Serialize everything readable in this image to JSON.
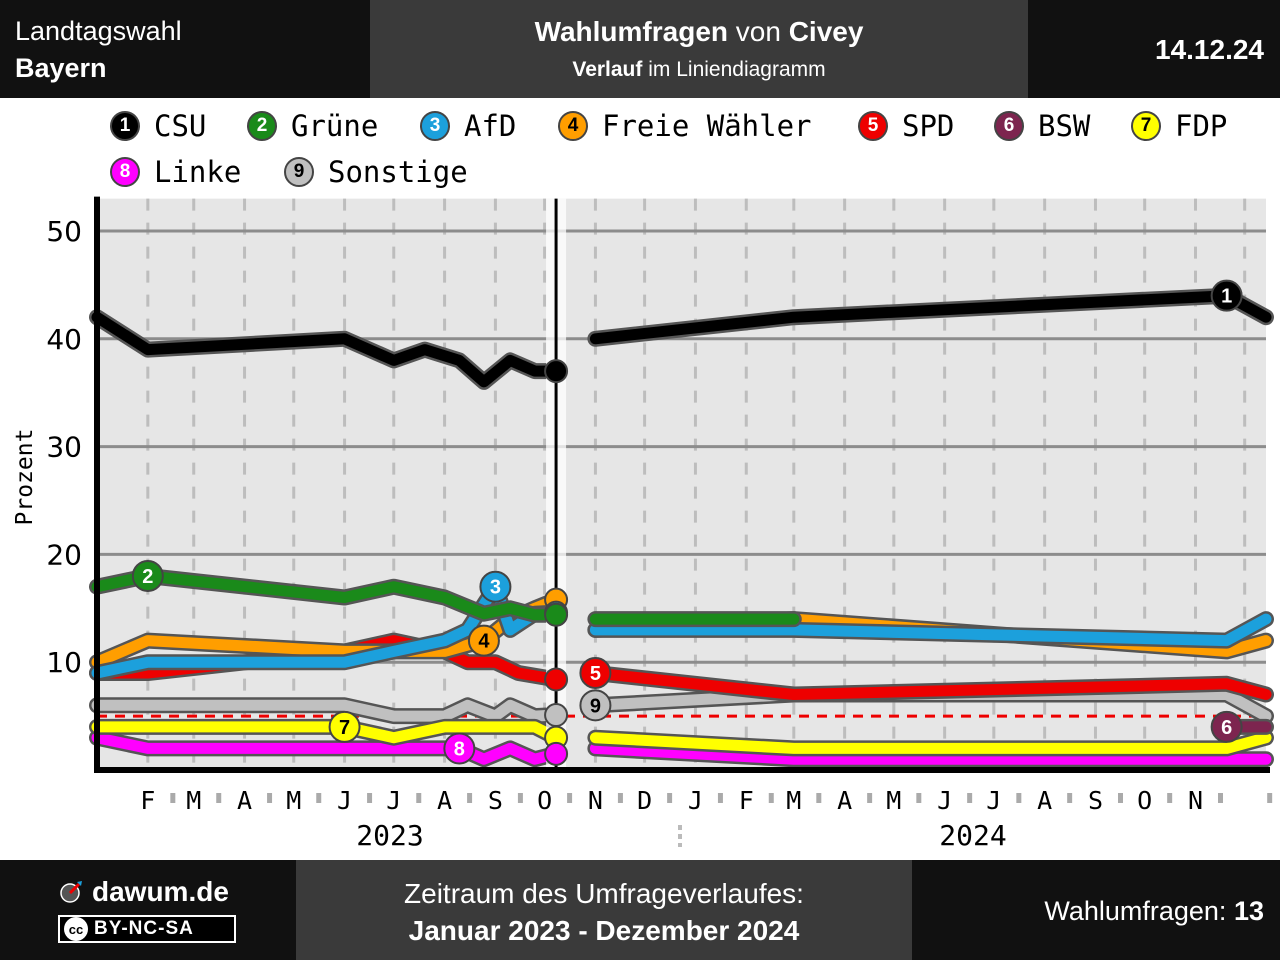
{
  "header": {
    "election_type": "Landtagswahl",
    "region": "Bayern",
    "title_bold1": "Wahlumfragen",
    "title_mid": " von ",
    "title_bold2": "Civey",
    "subtitle_bold": "Verlauf",
    "subtitle_rest": " im Liniendiagramm",
    "date": "14.12.24"
  },
  "legend": [
    {
      "num": "1",
      "label": "CSU",
      "color": "#000000",
      "text_color": "#ffffff"
    },
    {
      "num": "2",
      "label": "Grüne",
      "color": "#1a8a1a",
      "text_color": "#ffffff"
    },
    {
      "num": "3",
      "label": "AfD",
      "color": "#1ca0dc",
      "text_color": "#ffffff"
    },
    {
      "num": "4",
      "label": "Freie Wähler",
      "color": "#ff9e00",
      "text_color": "#000000"
    },
    {
      "num": "5",
      "label": "SPD",
      "color": "#ee0000",
      "text_color": "#ffffff"
    },
    {
      "num": "6",
      "label": "BSW",
      "color": "#7d254f",
      "text_color": "#ffffff"
    },
    {
      "num": "7",
      "label": "FDP",
      "color": "#ffff00",
      "text_color": "#000000"
    },
    {
      "num": "8",
      "label": "Linke",
      "color": "#ff00ff",
      "text_color": "#ffffff"
    },
    {
      "num": "9",
      "label": "Sonstige",
      "color": "#c0c0c0",
      "text_color": "#000000"
    }
  ],
  "chart_data": {
    "type": "line",
    "ylabel": "Prozent",
    "ylim": [
      0,
      53
    ],
    "yticks": [
      10,
      20,
      30,
      40,
      50
    ],
    "threshold": 5,
    "election_marker": "2023-10-08",
    "month_labels": [
      "F",
      "M",
      "A",
      "M",
      "J",
      "J",
      "A",
      "S",
      "O",
      "N",
      "D",
      "J",
      "F",
      "M",
      "A",
      "M",
      "J",
      "J",
      "A",
      "S",
      "O",
      "N"
    ],
    "years": [
      "2023",
      "2024"
    ],
    "election_results": [
      {
        "party": "CSU",
        "value": 37.0
      },
      {
        "party": "Freie Wähler",
        "value": 15.8
      },
      {
        "party": "AfD",
        "value": 14.6
      },
      {
        "party": "Grüne",
        "value": 14.4
      },
      {
        "party": "SPD",
        "value": 8.4
      },
      {
        "party": "Sonstige",
        "value": 5.1
      },
      {
        "party": "FDP",
        "value": 3.0
      },
      {
        "party": "Linke",
        "value": 1.5
      }
    ],
    "series": [
      {
        "name": "CSU",
        "color": "#000000",
        "label_num": "1",
        "label_at": "2024-11-20",
        "points": [
          [
            "2023-01-01",
            42
          ],
          [
            "2023-02-01",
            39
          ],
          [
            "2023-06-01",
            40
          ],
          [
            "2023-07-01",
            38
          ],
          [
            "2023-07-20",
            39
          ],
          [
            "2023-08-10",
            38
          ],
          [
            "2023-08-25",
            36
          ],
          [
            "2023-09-10",
            38
          ],
          [
            "2023-09-25",
            37
          ],
          [
            "2023-10-08",
            37
          ]
        ],
        "points2": [
          [
            "2023-11-01",
            40
          ],
          [
            "2024-03-01",
            42
          ],
          [
            "2024-11-20",
            44
          ],
          [
            "2024-12-14",
            42
          ]
        ]
      },
      {
        "name": "Grüne",
        "color": "#1a8a1a",
        "label_num": "2",
        "label_at": "2023-02-01",
        "points": [
          [
            "2023-01-01",
            17
          ],
          [
            "2023-02-01",
            18
          ],
          [
            "2023-06-01",
            16
          ],
          [
            "2023-07-01",
            17
          ],
          [
            "2023-08-01",
            16
          ],
          [
            "2023-08-25",
            14.5
          ],
          [
            "2023-09-10",
            15
          ],
          [
            "2023-09-25",
            14.4
          ],
          [
            "2023-10-08",
            14.4
          ]
        ],
        "points2": [
          [
            "2023-11-01",
            14
          ],
          [
            "2024-03-01",
            14
          ]
        ]
      },
      {
        "name": "AfD",
        "color": "#1ca0dc",
        "label_num": "3",
        "label_at": "2023-09-01",
        "points": [
          [
            "2023-01-01",
            9
          ],
          [
            "2023-02-01",
            10
          ],
          [
            "2023-06-01",
            10
          ],
          [
            "2023-07-01",
            11
          ],
          [
            "2023-08-01",
            12
          ],
          [
            "2023-08-15",
            13
          ],
          [
            "2023-09-01",
            17
          ],
          [
            "2023-09-10",
            13
          ],
          [
            "2023-09-25",
            14.5
          ],
          [
            "2023-10-08",
            14.6
          ]
        ],
        "points2": [
          [
            "2023-11-01",
            13
          ],
          [
            "2024-03-01",
            13
          ],
          [
            "2024-11-20",
            12
          ],
          [
            "2024-12-14",
            14
          ]
        ]
      },
      {
        "name": "Freie Wähler",
        "color": "#ff9e00",
        "label_num": "4",
        "label_at": "2023-08-25",
        "points": [
          [
            "2023-01-01",
            10
          ],
          [
            "2023-02-01",
            12
          ],
          [
            "2023-06-01",
            11
          ],
          [
            "2023-07-01",
            11
          ],
          [
            "2023-08-01",
            11
          ],
          [
            "2023-08-25",
            12
          ],
          [
            "2023-09-10",
            14
          ],
          [
            "2023-09-25",
            15
          ],
          [
            "2023-10-08",
            15.8
          ]
        ],
        "points2": [
          [
            "2023-11-01",
            13
          ],
          [
            "2024-03-01",
            14
          ],
          [
            "2024-11-20",
            11
          ],
          [
            "2024-12-14",
            12
          ]
        ]
      },
      {
        "name": "SPD",
        "color": "#ee0000",
        "label_num": "5",
        "label_at": "2023-11-01",
        "points": [
          [
            "2023-01-01",
            9
          ],
          [
            "2023-02-01",
            9
          ],
          [
            "2023-06-01",
            11
          ],
          [
            "2023-07-01",
            12
          ],
          [
            "2023-08-01",
            11
          ],
          [
            "2023-08-15",
            10
          ],
          [
            "2023-09-01",
            10
          ],
          [
            "2023-09-15",
            9
          ],
          [
            "2023-10-08",
            8.4
          ]
        ],
        "points2": [
          [
            "2023-11-01",
            9
          ],
          [
            "2024-03-01",
            7
          ],
          [
            "2024-11-20",
            8
          ],
          [
            "2024-12-14",
            7
          ]
        ]
      },
      {
        "name": "BSW",
        "color": "#7d254f",
        "label_num": "6",
        "label_at": "2024-11-20",
        "points": [],
        "points2": [
          [
            "2024-11-20",
            4
          ],
          [
            "2024-12-14",
            4
          ]
        ]
      },
      {
        "name": "FDP",
        "color": "#ffff00",
        "label_num": "7",
        "label_at": "2023-06-01",
        "points": [
          [
            "2023-01-01",
            4
          ],
          [
            "2023-06-01",
            4
          ],
          [
            "2023-07-01",
            3
          ],
          [
            "2023-08-01",
            4
          ],
          [
            "2023-09-25",
            4
          ],
          [
            "2023-10-08",
            3
          ]
        ],
        "points2": [
          [
            "2023-11-01",
            3
          ],
          [
            "2024-03-01",
            2
          ],
          [
            "2024-11-20",
            2
          ],
          [
            "2024-12-14",
            3
          ]
        ]
      },
      {
        "name": "Linke",
        "color": "#ff00ff",
        "label_num": "8",
        "label_at": "2023-08-10",
        "points": [
          [
            "2023-01-01",
            3
          ],
          [
            "2023-02-01",
            2
          ],
          [
            "2023-08-10",
            2
          ],
          [
            "2023-08-25",
            1
          ],
          [
            "2023-09-10",
            2
          ],
          [
            "2023-09-25",
            1
          ],
          [
            "2023-10-08",
            1.5
          ]
        ],
        "points2": [
          [
            "2023-11-01",
            2
          ],
          [
            "2024-03-01",
            1
          ],
          [
            "2024-11-20",
            1
          ],
          [
            "2024-12-14",
            1
          ]
        ]
      },
      {
        "name": "Sonstige",
        "color": "#c0c0c0",
        "label_num": "9",
        "label_at": "2023-11-01",
        "points": [
          [
            "2023-01-01",
            6
          ],
          [
            "2023-06-01",
            6
          ],
          [
            "2023-07-01",
            5
          ],
          [
            "2023-08-01",
            5
          ],
          [
            "2023-08-15",
            6
          ],
          [
            "2023-09-01",
            5
          ],
          [
            "2023-09-10",
            6
          ],
          [
            "2023-09-25",
            5
          ],
          [
            "2023-10-08",
            5.1
          ]
        ],
        "points2": [
          [
            "2023-11-01",
            6
          ],
          [
            "2024-03-01",
            7
          ],
          [
            "2024-11-20",
            7
          ],
          [
            "2024-12-14",
            5
          ]
        ]
      }
    ]
  },
  "footer": {
    "brand": "dawum.de",
    "cc_icon": "cc",
    "license": "BY-NC-SA",
    "period_label": "Zeitraum des Umfrageverlaufes:",
    "period_value": "Januar 2023 - Dezember 2024",
    "count_label": "Wahlumfragen: ",
    "count_value": "13"
  }
}
